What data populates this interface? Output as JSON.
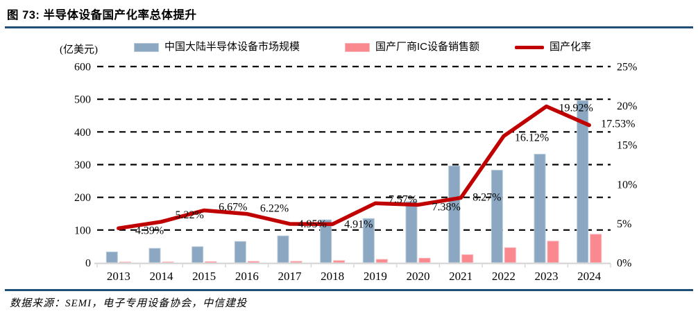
{
  "header": {
    "title": "图 73:  半导体设备国产化率总体提升"
  },
  "footer": {
    "source": "数据来源：SEMI，电子专用设备协会，中信建投"
  },
  "chart_data": {
    "type": "combo",
    "title": "半导体设备国产化率总体提升",
    "legend_position": "top",
    "grid": "horizontal-dashed",
    "categories": [
      "2013",
      "2014",
      "2015",
      "2016",
      "2017",
      "2018",
      "2019",
      "2020",
      "2021",
      "2022",
      "2023",
      "2024"
    ],
    "series": [
      {
        "name": "中国大陆半导体设备市场规模",
        "type": "bar",
        "axis": "left",
        "color": "#8ba7c1",
        "border_color": "#b9cbd9",
        "values": [
          33,
          44,
          49,
          65,
          82,
          131,
          135,
          187,
          296,
          283,
          332,
          496
        ]
      },
      {
        "name": "国产厂商IC设备销售额",
        "type": "bar",
        "axis": "left",
        "color": "#f9888f",
        "border_color": "#fbb5ba",
        "values": [
          1.5,
          2.3,
          3.3,
          4.0,
          4.1,
          6.4,
          10.2,
          13.8,
          24.5,
          46,
          66,
          87
        ]
      },
      {
        "name": "国产化率",
        "type": "line",
        "axis": "right",
        "color": "#c00000",
        "values": [
          4.39,
          5.22,
          6.67,
          6.22,
          4.95,
          4.91,
          7.57,
          7.38,
          8.27,
          16.12,
          19.92,
          17.53
        ],
        "point_labels": [
          "4.39%",
          "5.22%",
          "6.67%",
          "6.22%",
          "4.95%",
          "4.91%",
          "7.57%",
          "7.38%",
          "8.27%",
          "16.12%",
          "19.92%",
          "17.53%"
        ]
      }
    ],
    "left_axis": {
      "unit": "(亿美元)",
      "tick_labels": [
        "0",
        "100",
        "200",
        "300",
        "400",
        "500",
        "600"
      ],
      "tick_values": [
        0,
        100,
        200,
        300,
        400,
        500,
        600
      ],
      "range": [
        0,
        600
      ]
    },
    "right_axis": {
      "tick_labels": [
        "0%",
        "5%",
        "10%",
        "15%",
        "20%",
        "25%"
      ],
      "tick_values": [
        0,
        5,
        10,
        15,
        20,
        25
      ],
      "range": [
        0,
        25
      ]
    }
  }
}
